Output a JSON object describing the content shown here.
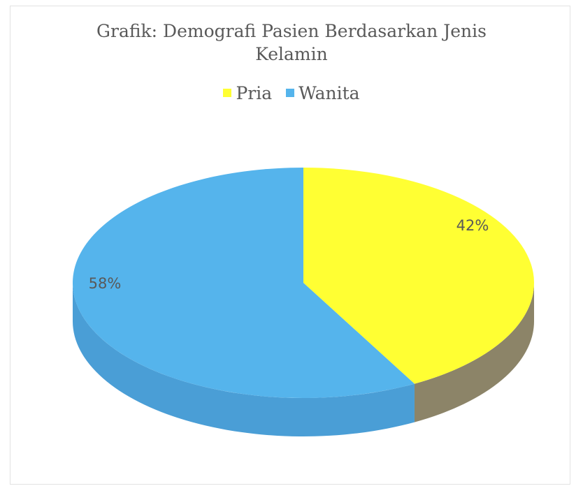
{
  "chart_data": {
    "type": "pie",
    "title": "Grafik: Demografi Pasien Berdasarkan Jenis Kelamin",
    "title_lines": [
      "Grafik: Demografi Pasien Berdasarkan Jenis",
      "Kelamin"
    ],
    "legend": {
      "placement": "top"
    },
    "categories": [
      "Pria",
      "Wanita"
    ],
    "values": [
      42,
      58
    ],
    "data_labels": [
      "42%",
      "58%"
    ],
    "colors": [
      "#FFFF33",
      "#55B4EC"
    ],
    "side_colors": [
      "#8C8468",
      "#4A9ED6"
    ],
    "style": "3d"
  }
}
